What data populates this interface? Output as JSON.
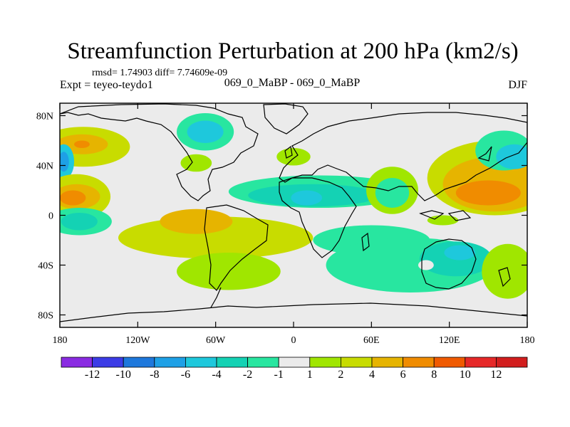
{
  "chart_data": {
    "type": "heatmap",
    "title": "Streamfunction Perturbation at 200 hPa (km2/s)",
    "stats_line": "rmsd= 1.74903 diff= 7.74609e-09",
    "left_label": "Expt = teyeo-teydo1",
    "center_label": "069_0_MaBP - 069_0_MaBP",
    "right_label": "DJF",
    "xlim": [
      -180,
      180
    ],
    "ylim": [
      -90,
      90
    ],
    "x_ticks": [
      {
        "value": -180,
        "label": "180"
      },
      {
        "value": -120,
        "label": "120W"
      },
      {
        "value": -60,
        "label": "60W"
      },
      {
        "value": 0,
        "label": "0"
      },
      {
        "value": 60,
        "label": "60E"
      },
      {
        "value": 120,
        "label": "120E"
      },
      {
        "value": 180,
        "label": "180"
      }
    ],
    "y_ticks": [
      {
        "value": 80,
        "label": "80N"
      },
      {
        "value": 40,
        "label": "40N"
      },
      {
        "value": 0,
        "label": "0"
      },
      {
        "value": -40,
        "label": "40S"
      },
      {
        "value": -80,
        "label": "80S"
      }
    ],
    "colorbar": {
      "labels": [
        "-12",
        "-10",
        "-8",
        "-6",
        "-4",
        "-2",
        "-1",
        "1",
        "2",
        "4",
        "6",
        "8",
        "10",
        "12"
      ],
      "colors": [
        "#8a2be2",
        "#3c3ce6",
        "#1e78dc",
        "#1ea0e6",
        "#1ec8dc",
        "#14d2b4",
        "#28e6a0",
        "#ebebeb",
        "#a0e600",
        "#c8dc00",
        "#e6b400",
        "#f08c00",
        "#f05a00",
        "#e62828",
        "#d21e1e"
      ]
    },
    "anomalies": [
      {
        "lon": -162,
        "lat": 55,
        "rx": 36,
        "ry": 16,
        "level": 2
      },
      {
        "lon": -163,
        "lat": 57,
        "rx": 20,
        "ry": 8,
        "level": 3
      },
      {
        "lon": -163,
        "lat": 57,
        "rx": 6,
        "ry": 3,
        "level": 4
      },
      {
        "lon": -177,
        "lat": 43,
        "rx": 8,
        "ry": 14,
        "level": -3
      },
      {
        "lon": -177,
        "lat": 43,
        "rx": 4,
        "ry": 8,
        "level": -4
      },
      {
        "lon": -167,
        "lat": 15,
        "rx": 26,
        "ry": 18,
        "level": 2
      },
      {
        "lon": -167,
        "lat": 15,
        "rx": 18,
        "ry": 10,
        "level": 3
      },
      {
        "lon": -170,
        "lat": 14,
        "rx": 10,
        "ry": 6,
        "level": 4
      },
      {
        "lon": -75,
        "lat": 42,
        "rx": 12,
        "ry": 7,
        "level": 1
      },
      {
        "lon": -68,
        "lat": 67,
        "rx": 22,
        "ry": 15,
        "level": -1
      },
      {
        "lon": -68,
        "lat": 67,
        "rx": 14,
        "ry": 9,
        "level": -3
      },
      {
        "lon": 20,
        "lat": 19,
        "rx": 70,
        "ry": 13,
        "level": -1
      },
      {
        "lon": 15,
        "lat": 16,
        "rx": 50,
        "ry": 9,
        "level": -2
      },
      {
        "lon": 10,
        "lat": 14,
        "rx": 12,
        "ry": 6,
        "level": -3
      },
      {
        "lon": 0,
        "lat": 47,
        "rx": 13,
        "ry": 7,
        "level": 1
      },
      {
        "lon": 76,
        "lat": 20,
        "rx": 20,
        "ry": 19,
        "level": 1
      },
      {
        "lon": 76,
        "lat": 18,
        "rx": 13,
        "ry": 12,
        "level": -1
      },
      {
        "lon": 155,
        "lat": 30,
        "rx": 52,
        "ry": 30,
        "level": 2
      },
      {
        "lon": 155,
        "lat": 25,
        "rx": 40,
        "ry": 22,
        "level": 3
      },
      {
        "lon": 150,
        "lat": 18,
        "rx": 25,
        "ry": 10,
        "level": 4
      },
      {
        "lon": 162,
        "lat": 52,
        "rx": 22,
        "ry": 16,
        "level": -1
      },
      {
        "lon": 170,
        "lat": 47,
        "rx": 14,
        "ry": 10,
        "level": -3
      },
      {
        "lon": -60,
        "lat": -18,
        "rx": 75,
        "ry": 17,
        "level": 2
      },
      {
        "lon": -75,
        "lat": -5,
        "rx": 28,
        "ry": 10,
        "level": 3
      },
      {
        "lon": -165,
        "lat": -5,
        "rx": 25,
        "ry": 11,
        "level": -1
      },
      {
        "lon": -165,
        "lat": -5,
        "rx": 14,
        "ry": 7,
        "level": -2
      },
      {
        "lon": -50,
        "lat": -45,
        "rx": 40,
        "ry": 15,
        "level": 1
      },
      {
        "lon": 60,
        "lat": -20,
        "rx": 45,
        "ry": 12,
        "level": -1
      },
      {
        "lon": 90,
        "lat": -40,
        "rx": 65,
        "ry": 22,
        "level": -1
      },
      {
        "lon": 125,
        "lat": -35,
        "rx": 28,
        "ry": 14,
        "level": -2
      },
      {
        "lon": 128,
        "lat": -30,
        "rx": 12,
        "ry": 6,
        "level": -3
      },
      {
        "lon": 102,
        "lat": -40,
        "rx": 6,
        "ry": 4,
        "level": 0
      },
      {
        "lon": 115,
        "lat": -4,
        "rx": 12,
        "ry": 4,
        "level": 1
      },
      {
        "lon": 165,
        "lat": -45,
        "rx": 20,
        "ry": 22,
        "level": 1
      }
    ]
  }
}
